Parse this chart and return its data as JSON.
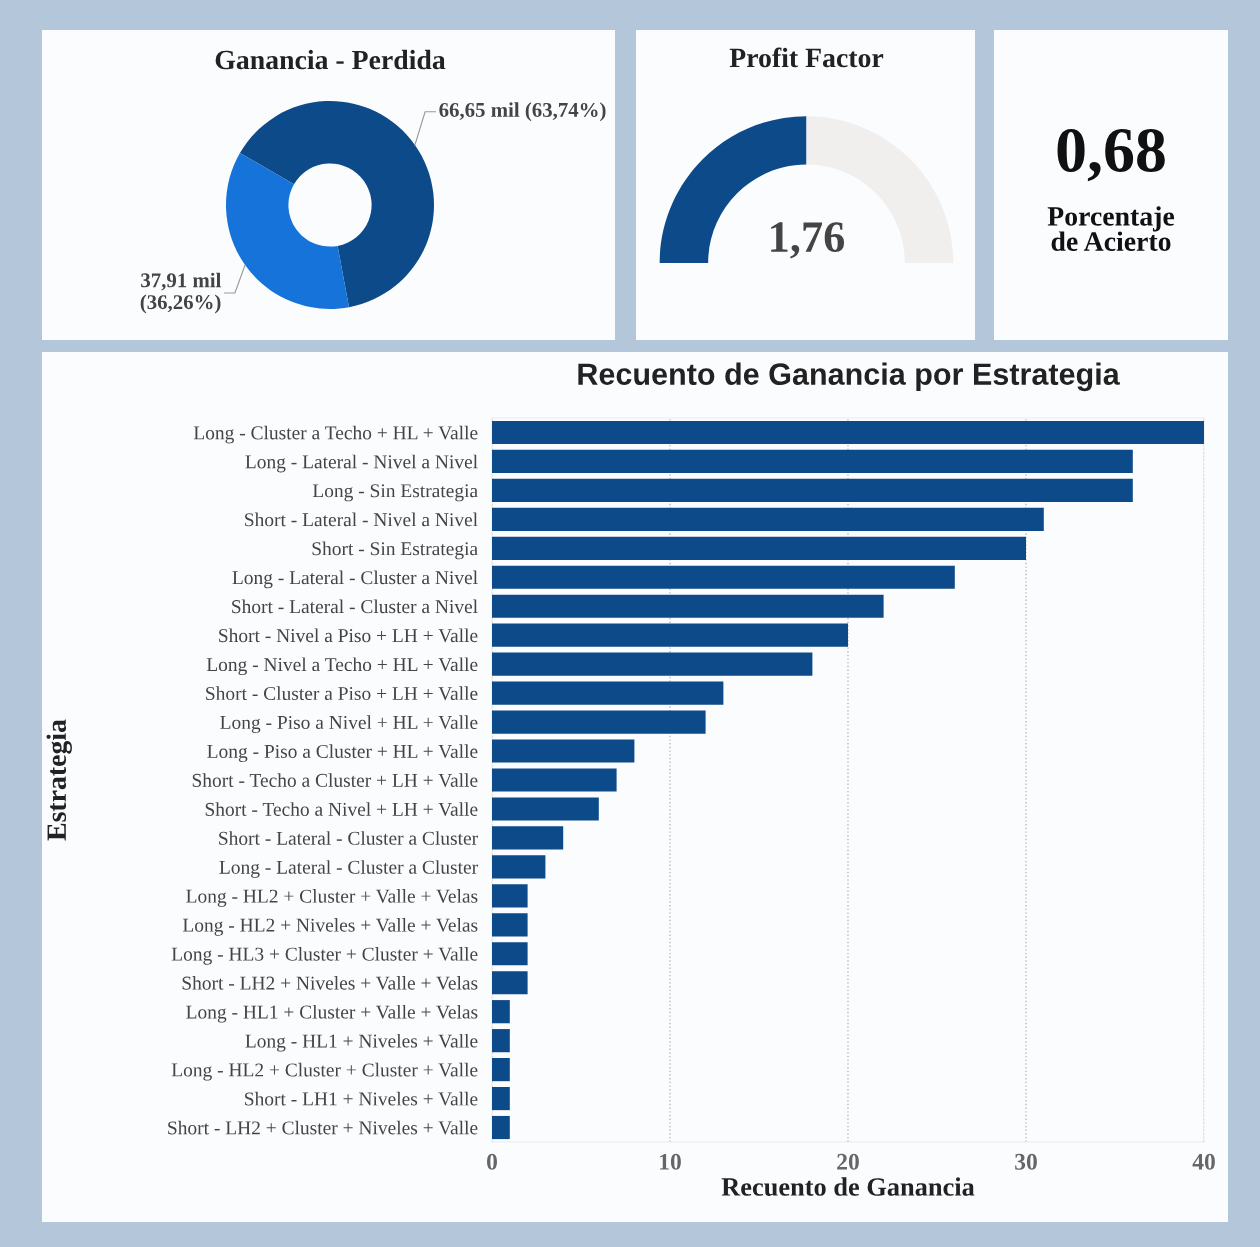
{
  "chart_data": [
    {
      "type": "donut",
      "title": "Ganancia - Perdida",
      "categories": [
        null,
        null
      ],
      "values": [
        66.65,
        37.91
      ],
      "colors": [
        "#0d4a8a",
        "#1573d9"
      ],
      "value_labels": [
        "66,65 mil (63,74%)",
        "37,91 mil\n(36,26%)"
      ]
    },
    {
      "type": "donut",
      "title": "Profit Factor",
      "categories": [
        null,
        null
      ],
      "values": [
        50,
        50
      ],
      "colors": [
        "#0d4a8a",
        "#f1efee"
      ],
      "annotations": [
        "1,76"
      ]
    },
    {
      "type": "other",
      "annotations": [
        "0,68",
        "Porcentaje\nde Acierto"
      ]
    },
    {
      "type": "bar",
      "orientation": "horizontal",
      "title": "Recuento de Ganancia por Estrategia",
      "xlabel": "Recuento de Ganancia",
      "ylabel": "Estrategia",
      "categories": [
        "Long - Cluster a Techo + HL + Valle",
        "Long - Lateral - Nivel a Nivel",
        "Long - Sin Estrategia",
        "Short - Lateral - Nivel a Nivel",
        "Short - Sin Estrategia",
        "Long - Lateral - Cluster a Nivel",
        "Short - Lateral - Cluster a Nivel",
        "Short - Nivel a Piso + LH + Valle",
        "Long - Nivel a Techo + HL + Valle",
        "Short - Cluster a Piso + LH + Valle",
        "Long - Piso a Nivel + HL + Valle",
        "Long - Piso a Cluster + HL + Valle",
        "Short - Techo a Cluster + LH + Valle",
        "Short - Techo a Nivel + LH + Valle",
        "Short - Lateral - Cluster a Cluster",
        "Long - Lateral - Cluster a Cluster",
        "Long - HL2 + Cluster + Valle + Velas",
        "Long - HL2 + Niveles + Valle + Velas",
        "Long - HL3 + Cluster + Cluster + Valle",
        "Short - LH2 + Niveles + Valle + Velas",
        "Long - HL1 + Cluster + Valle + Velas",
        "Long - HL1 + Niveles + Valle",
        "Long - HL2 + Cluster + Cluster + Valle",
        "Short - LH1 + Niveles + Valle",
        "Short - LH2 + Cluster + Niveles + Valle"
      ],
      "values": [
        40,
        36,
        36,
        31,
        30,
        26,
        22,
        20,
        18,
        13,
        12,
        8,
        7,
        6,
        4,
        3,
        2,
        2,
        2,
        2,
        1,
        1,
        1,
        1,
        1
      ],
      "color": "#0d4a8a",
      "xlim": [
        0,
        40
      ],
      "xticks": [
        0,
        10,
        20,
        30,
        40
      ],
      "grid": "x"
    }
  ]
}
